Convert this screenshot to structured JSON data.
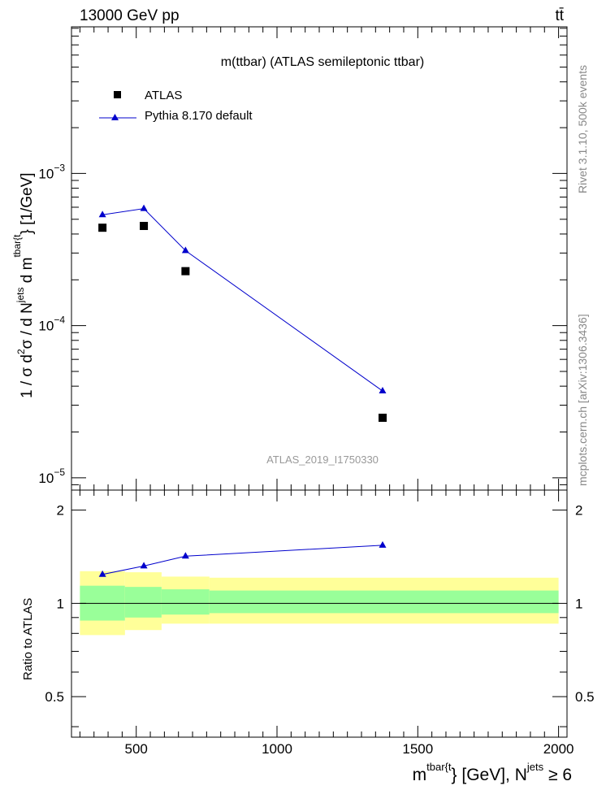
{
  "header": {
    "left": "13000 GeV pp",
    "right": "tt̄"
  },
  "side_labels": {
    "top": "Rivet 3.1.10,  500k events",
    "bottom": "mcplots.cern.ch [arXiv:1306.3436]"
  },
  "chart_data": [
    {
      "type": "scatter",
      "title": "m(ttbar) (ATLAS semileptonic ttbar)",
      "watermark": "ATLAS_2019_I1750330",
      "xlabel": {
        "main": "m",
        "sup1": "tbar{t",
        "mid": "} [GeV], N",
        "sup2": "jets",
        "tail": " ≥ 6"
      },
      "ylabel": {
        "a": "1 / σ d",
        "b": "2",
        "c": "σ / d N",
        "d": "jets",
        "e": " d m",
        "f": "tbar{t",
        "g": "} [1/GeV]"
      },
      "xlim": [
        270,
        2030
      ],
      "ylim": [
        8.3e-06,
        0.0092
      ],
      "yscale": "log",
      "ytick_labels": [
        {
          "value": 0.001,
          "base": "10",
          "exp": "−3"
        },
        {
          "value": 0.0001,
          "base": "10",
          "exp": "−4"
        },
        {
          "value": 1e-05,
          "base": "10",
          "exp": "−5"
        }
      ],
      "legend_position": "top-left",
      "series": [
        {
          "name": "ATLAS",
          "color": "#000000",
          "marker": "square",
          "x": [
            380,
            527,
            675,
            1375
          ],
          "y": [
            0.00044,
            0.000452,
            0.000228,
            2.48e-05
          ]
        },
        {
          "name": "Pythia 8.170 default",
          "color": "#0000cc",
          "marker": "triangle",
          "x": [
            380,
            527,
            675,
            1375
          ],
          "y": [
            0.000535,
            0.000588,
            0.000311,
            3.72e-05
          ]
        }
      ]
    },
    {
      "type": "line",
      "ylabel": "Ratio to ATLAS",
      "xlim": [
        270,
        2030
      ],
      "ylim": [
        0.37,
        2.32
      ],
      "xticks": [
        500,
        1000,
        1500,
        2000
      ],
      "xtick_labels": [
        "500",
        "1000",
        "1500",
        "2000"
      ],
      "yticks": [
        0.5,
        1,
        2
      ],
      "ytick_labels": [
        "0.5",
        "1",
        "2"
      ],
      "bands": [
        {
          "x0": 300,
          "x1": 460,
          "inner": [
            0.88,
            1.14
          ],
          "outer": [
            0.79,
            1.27
          ]
        },
        {
          "x0": 460,
          "x1": 590,
          "inner": [
            0.9,
            1.13
          ],
          "outer": [
            0.82,
            1.26
          ]
        },
        {
          "x0": 590,
          "x1": 760,
          "inner": [
            0.92,
            1.11
          ],
          "outer": [
            0.86,
            1.22
          ]
        },
        {
          "x0": 760,
          "x1": 2000,
          "inner": [
            0.93,
            1.1
          ],
          "outer": [
            0.86,
            1.21
          ]
        }
      ],
      "band_colors": {
        "inner": "#99ff99",
        "outer": "#ffff99"
      },
      "series": [
        {
          "name": "Pythia 8.170 default",
          "color": "#0000cc",
          "x": [
            380,
            527,
            675,
            1375
          ],
          "y": [
            1.24,
            1.32,
            1.42,
            1.54
          ]
        }
      ]
    }
  ]
}
